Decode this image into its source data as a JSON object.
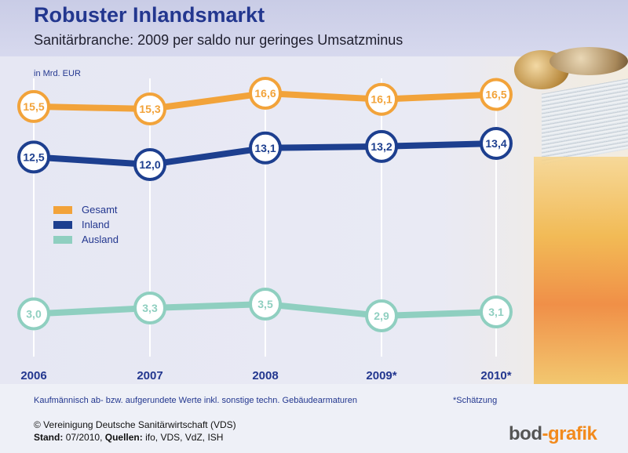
{
  "header": {
    "title": "Robuster Inlandsmarkt",
    "subtitle": "Sanitärbranche: 2009 per saldo nur geringes Umsatzminus"
  },
  "chart_data": {
    "type": "line",
    "unit_label": "in Mrd. EUR",
    "categories": [
      "2006",
      "2007",
      "2008",
      "2009*",
      "2010*"
    ],
    "series": [
      {
        "name": "Gesamt",
        "color": "#f2a33a",
        "values": [
          15.5,
          15.3,
          16.6,
          16.1,
          16.5
        ],
        "labels": [
          "15,5",
          "15,3",
          "16,6",
          "16,1",
          "16,5"
        ]
      },
      {
        "name": "Inland",
        "color": "#1d3f8f",
        "values": [
          12.5,
          12.0,
          13.1,
          13.2,
          13.4
        ],
        "labels": [
          "12,5",
          "12,0",
          "13,1",
          "13,2",
          "13,4"
        ]
      },
      {
        "name": "Ausland",
        "color": "#8fcfc0",
        "values": [
          3.0,
          3.3,
          3.5,
          2.9,
          3.1
        ],
        "labels": [
          "3,0",
          "3,3",
          "3,5",
          "2,9",
          "3,1"
        ]
      }
    ],
    "legend_position": "left-middle",
    "grid": "vertical"
  },
  "footer": {
    "footnote": "Kaufmännisch ab- bzw. aufgerundete Werte inkl. sonstige techn. Gebäudearmaturen",
    "estimate_note": "*Schätzung",
    "copyright": "© Vereinigung Deutsche Sanitärwirtschaft (VDS)",
    "status_label": "Stand:",
    "status_value": "07/2010,",
    "sources_label": "Quellen:",
    "sources_value": "ifo, VDS, VdZ, ISH",
    "brand_left": "bod",
    "brand_right": "-grafik"
  }
}
